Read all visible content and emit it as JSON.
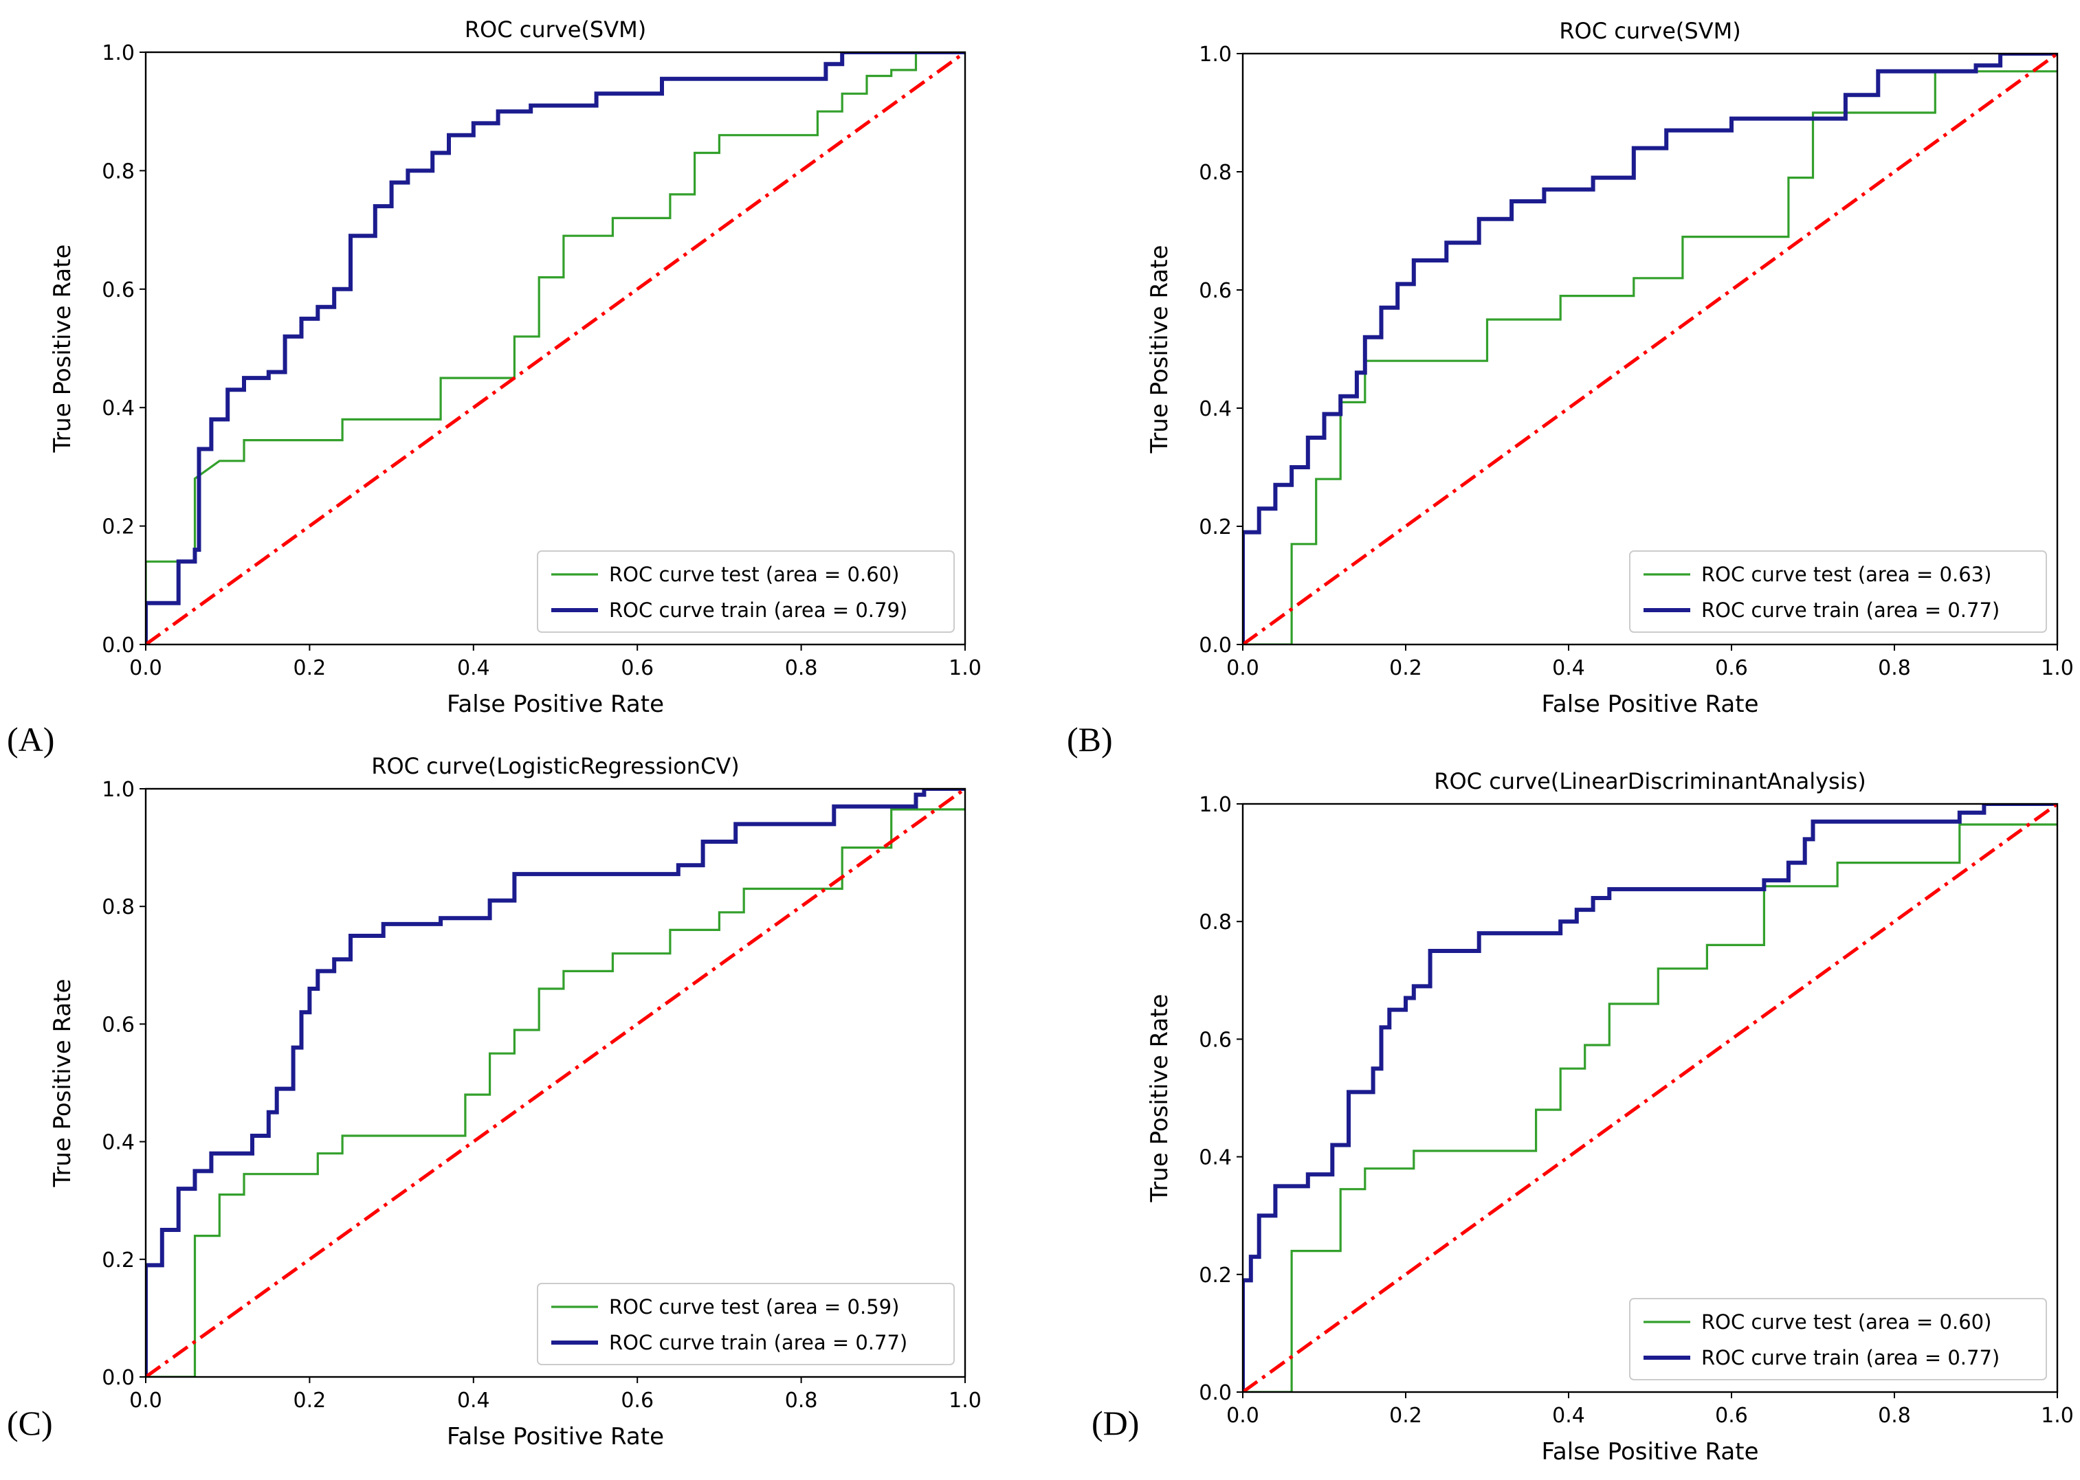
{
  "chart_data": [
    {
      "type": "line",
      "panel_label": "(A)",
      "title": "ROC curve(SVM)",
      "xlabel": "False Positive Rate",
      "ylabel": "True Positive Rate",
      "xlim": [
        0.0,
        1.0
      ],
      "ylim": [
        0.0,
        1.0
      ],
      "xticks": [
        "0.0",
        "0.2",
        "0.4",
        "0.6",
        "0.8",
        "1.0"
      ],
      "yticks": [
        "0.0",
        "0.2",
        "0.4",
        "0.6",
        "0.8",
        "1.0"
      ],
      "grid": false,
      "legend_position": "lower-right",
      "colors": {
        "test": "#33a02c",
        "train": "#1c1c8f",
        "diagonal": "#ff0000"
      },
      "series": [
        {
          "name": "ROC curve test (area = 0.60)",
          "role": "test",
          "x": [
            0,
            0,
            0.06,
            0.06,
            0.09,
            0.12,
            0.12,
            0.24,
            0.24,
            0.36,
            0.36,
            0.45,
            0.45,
            0.48,
            0.48,
            0.51,
            0.51,
            0.57,
            0.57,
            0.64,
            0.64,
            0.67,
            0.67,
            0.7,
            0.7,
            0.82,
            0.82,
            0.85,
            0.85,
            0.88,
            0.88,
            0.91,
            0.91,
            0.94,
            0.94,
            1.0
          ],
          "y": [
            0,
            0.14,
            0.14,
            0.28,
            0.31,
            0.31,
            0.345,
            0.345,
            0.38,
            0.38,
            0.45,
            0.45,
            0.52,
            0.52,
            0.62,
            0.62,
            0.69,
            0.69,
            0.72,
            0.72,
            0.76,
            0.76,
            0.83,
            0.83,
            0.86,
            0.86,
            0.9,
            0.9,
            0.93,
            0.93,
            0.96,
            0.96,
            0.97,
            0.97,
            1.0,
            1.0
          ]
        },
        {
          "name": "ROC curve train (area = 0.79)",
          "role": "train",
          "x": [
            0,
            0,
            0.04,
            0.04,
            0.06,
            0.06,
            0.065,
            0.065,
            0.08,
            0.08,
            0.1,
            0.1,
            0.12,
            0.12,
            0.15,
            0.15,
            0.17,
            0.17,
            0.19,
            0.19,
            0.21,
            0.21,
            0.23,
            0.23,
            0.25,
            0.25,
            0.28,
            0.28,
            0.3,
            0.3,
            0.32,
            0.32,
            0.35,
            0.35,
            0.37,
            0.37,
            0.4,
            0.4,
            0.43,
            0.43,
            0.47,
            0.47,
            0.55,
            0.55,
            0.63,
            0.63,
            0.83,
            0.83,
            0.85,
            0.85,
            1.0
          ],
          "y": [
            0,
            0.07,
            0.07,
            0.14,
            0.14,
            0.16,
            0.16,
            0.33,
            0.33,
            0.38,
            0.38,
            0.43,
            0.43,
            0.45,
            0.45,
            0.46,
            0.46,
            0.52,
            0.52,
            0.55,
            0.55,
            0.57,
            0.57,
            0.6,
            0.6,
            0.69,
            0.69,
            0.74,
            0.74,
            0.78,
            0.78,
            0.8,
            0.8,
            0.83,
            0.83,
            0.86,
            0.86,
            0.88,
            0.88,
            0.9,
            0.9,
            0.91,
            0.91,
            0.93,
            0.93,
            0.955,
            0.955,
            0.98,
            0.98,
            1.0,
            1.0
          ]
        },
        {
          "name": "diagonal",
          "role": "diagonal",
          "x": [
            0,
            1
          ],
          "y": [
            0,
            1
          ]
        }
      ]
    },
    {
      "type": "line",
      "panel_label": "(B)",
      "title": "ROC curve(SVM)",
      "xlabel": "False Positive Rate",
      "ylabel": "True Positive Rate",
      "xlim": [
        0.0,
        1.0
      ],
      "ylim": [
        0.0,
        1.0
      ],
      "xticks": [
        "0.0",
        "0.2",
        "0.4",
        "0.6",
        "0.8",
        "1.0"
      ],
      "yticks": [
        "0.0",
        "0.2",
        "0.4",
        "0.6",
        "0.8",
        "1.0"
      ],
      "grid": false,
      "legend_position": "lower-right",
      "colors": {
        "test": "#33a02c",
        "train": "#1c1c8f",
        "diagonal": "#ff0000"
      },
      "series": [
        {
          "name": "ROC curve test (area = 0.63)",
          "role": "test",
          "x": [
            0,
            0.06,
            0.06,
            0.09,
            0.09,
            0.12,
            0.12,
            0.15,
            0.15,
            0.3,
            0.3,
            0.39,
            0.39,
            0.48,
            0.48,
            0.54,
            0.54,
            0.67,
            0.67,
            0.7,
            0.7,
            0.85,
            0.85,
            1.0
          ],
          "y": [
            0,
            0,
            0.17,
            0.17,
            0.28,
            0.28,
            0.41,
            0.41,
            0.48,
            0.48,
            0.55,
            0.55,
            0.59,
            0.59,
            0.62,
            0.62,
            0.69,
            0.69,
            0.79,
            0.79,
            0.9,
            0.9,
            0.97,
            0.97
          ]
        },
        {
          "name": "ROC curve train (area = 0.77)",
          "role": "train",
          "x": [
            0,
            0,
            0.02,
            0.02,
            0.04,
            0.04,
            0.06,
            0.06,
            0.08,
            0.08,
            0.1,
            0.1,
            0.12,
            0.12,
            0.14,
            0.14,
            0.15,
            0.15,
            0.17,
            0.17,
            0.19,
            0.19,
            0.21,
            0.21,
            0.25,
            0.25,
            0.29,
            0.29,
            0.33,
            0.33,
            0.37,
            0.37,
            0.43,
            0.43,
            0.48,
            0.48,
            0.52,
            0.52,
            0.6,
            0.6,
            0.74,
            0.74,
            0.78,
            0.78,
            0.9,
            0.9,
            0.93,
            0.93,
            1.0
          ],
          "y": [
            0,
            0.19,
            0.19,
            0.23,
            0.23,
            0.27,
            0.27,
            0.3,
            0.3,
            0.35,
            0.35,
            0.39,
            0.39,
            0.42,
            0.42,
            0.46,
            0.46,
            0.52,
            0.52,
            0.57,
            0.57,
            0.61,
            0.61,
            0.65,
            0.65,
            0.68,
            0.68,
            0.72,
            0.72,
            0.75,
            0.75,
            0.77,
            0.77,
            0.79,
            0.79,
            0.84,
            0.84,
            0.87,
            0.87,
            0.89,
            0.89,
            0.93,
            0.93,
            0.97,
            0.97,
            0.98,
            0.98,
            1.0,
            1.0
          ]
        },
        {
          "name": "diagonal",
          "role": "diagonal",
          "x": [
            0,
            1
          ],
          "y": [
            0,
            1
          ]
        }
      ]
    },
    {
      "type": "line",
      "panel_label": "(C)",
      "title": "ROC curve(LogisticRegressionCV)",
      "xlabel": "False Positive Rate",
      "ylabel": "True Positive Rate",
      "xlim": [
        0.0,
        1.0
      ],
      "ylim": [
        0.0,
        1.0
      ],
      "xticks": [
        "0.0",
        "0.2",
        "0.4",
        "0.6",
        "0.8",
        "1.0"
      ],
      "yticks": [
        "0.0",
        "0.2",
        "0.4",
        "0.6",
        "0.8",
        "1.0"
      ],
      "grid": false,
      "legend_position": "lower-right",
      "colors": {
        "test": "#33a02c",
        "train": "#1c1c8f",
        "diagonal": "#ff0000"
      },
      "series": [
        {
          "name": "ROC curve test (area = 0.59)",
          "role": "test",
          "x": [
            0,
            0.06,
            0.06,
            0.09,
            0.09,
            0.12,
            0.12,
            0.21,
            0.21,
            0.24,
            0.24,
            0.39,
            0.39,
            0.42,
            0.42,
            0.45,
            0.45,
            0.48,
            0.48,
            0.51,
            0.51,
            0.57,
            0.57,
            0.64,
            0.64,
            0.7,
            0.7,
            0.73,
            0.73,
            0.85,
            0.85,
            0.91,
            0.91,
            0.97,
            0.97,
            1.0
          ],
          "y": [
            0,
            0,
            0.24,
            0.24,
            0.31,
            0.31,
            0.345,
            0.345,
            0.38,
            0.38,
            0.41,
            0.41,
            0.48,
            0.48,
            0.55,
            0.55,
            0.59,
            0.59,
            0.66,
            0.66,
            0.69,
            0.69,
            0.72,
            0.72,
            0.76,
            0.76,
            0.79,
            0.79,
            0.83,
            0.83,
            0.9,
            0.9,
            0.965,
            0.965,
            0.965,
            0.965
          ]
        },
        {
          "name": "ROC curve train (area = 0.77)",
          "role": "train",
          "x": [
            0,
            0,
            0.02,
            0.02,
            0.04,
            0.04,
            0.06,
            0.06,
            0.08,
            0.08,
            0.13,
            0.13,
            0.15,
            0.15,
            0.16,
            0.16,
            0.18,
            0.18,
            0.19,
            0.19,
            0.2,
            0.2,
            0.21,
            0.21,
            0.23,
            0.23,
            0.25,
            0.25,
            0.29,
            0.29,
            0.36,
            0.36,
            0.42,
            0.42,
            0.45,
            0.45,
            0.65,
            0.65,
            0.68,
            0.68,
            0.72,
            0.72,
            0.84,
            0.84,
            0.94,
            0.94,
            0.95,
            0.95,
            1.0
          ],
          "y": [
            0,
            0.19,
            0.19,
            0.25,
            0.25,
            0.32,
            0.32,
            0.35,
            0.35,
            0.38,
            0.38,
            0.41,
            0.41,
            0.45,
            0.45,
            0.49,
            0.49,
            0.56,
            0.56,
            0.62,
            0.62,
            0.66,
            0.66,
            0.69,
            0.69,
            0.71,
            0.71,
            0.75,
            0.75,
            0.77,
            0.77,
            0.78,
            0.78,
            0.81,
            0.81,
            0.855,
            0.855,
            0.87,
            0.87,
            0.91,
            0.91,
            0.94,
            0.94,
            0.97,
            0.97,
            0.99,
            0.99,
            1.0,
            1.0
          ]
        },
        {
          "name": "diagonal",
          "role": "diagonal",
          "x": [
            0,
            1
          ],
          "y": [
            0,
            1
          ]
        }
      ]
    },
    {
      "type": "line",
      "panel_label": "(D)",
      "title": "ROC curve(LinearDiscriminantAnalysis)",
      "xlabel": "False Positive Rate",
      "ylabel": "True Positive Rate",
      "xlim": [
        0.0,
        1.0
      ],
      "ylim": [
        0.0,
        1.0
      ],
      "xticks": [
        "0.0",
        "0.2",
        "0.4",
        "0.6",
        "0.8",
        "1.0"
      ],
      "yticks": [
        "0.0",
        "0.2",
        "0.4",
        "0.6",
        "0.8",
        "1.0"
      ],
      "grid": false,
      "legend_position": "lower-right",
      "colors": {
        "test": "#33a02c",
        "train": "#1c1c8f",
        "diagonal": "#ff0000"
      },
      "series": [
        {
          "name": "ROC curve test (area = 0.60)",
          "role": "test",
          "x": [
            0,
            0.06,
            0.06,
            0.12,
            0.12,
            0.15,
            0.15,
            0.21,
            0.21,
            0.36,
            0.36,
            0.39,
            0.39,
            0.42,
            0.42,
            0.45,
            0.45,
            0.51,
            0.51,
            0.57,
            0.57,
            0.64,
            0.64,
            0.73,
            0.73,
            0.88,
            0.88,
            0.91,
            0.91,
            0.97,
            0.97,
            1.0
          ],
          "y": [
            0,
            0,
            0.24,
            0.24,
            0.345,
            0.345,
            0.38,
            0.38,
            0.41,
            0.41,
            0.48,
            0.48,
            0.55,
            0.55,
            0.59,
            0.59,
            0.66,
            0.66,
            0.72,
            0.72,
            0.76,
            0.76,
            0.86,
            0.86,
            0.9,
            0.9,
            0.965,
            0.965,
            0.965,
            0.965,
            0.965,
            0.965
          ]
        },
        {
          "name": "ROC curve train (area = 0.77)",
          "role": "train",
          "x": [
            0,
            0,
            0.01,
            0.01,
            0.02,
            0.02,
            0.04,
            0.04,
            0.08,
            0.08,
            0.11,
            0.11,
            0.13,
            0.13,
            0.16,
            0.16,
            0.17,
            0.17,
            0.18,
            0.18,
            0.2,
            0.2,
            0.21,
            0.21,
            0.23,
            0.23,
            0.29,
            0.29,
            0.39,
            0.39,
            0.41,
            0.41,
            0.43,
            0.43,
            0.45,
            0.45,
            0.64,
            0.64,
            0.67,
            0.67,
            0.69,
            0.69,
            0.7,
            0.7,
            0.88,
            0.88,
            0.91,
            0.91,
            0.93,
            0.93,
            1.0
          ],
          "y": [
            0,
            0.19,
            0.19,
            0.23,
            0.23,
            0.3,
            0.3,
            0.35,
            0.35,
            0.37,
            0.37,
            0.42,
            0.42,
            0.51,
            0.51,
            0.55,
            0.55,
            0.62,
            0.62,
            0.65,
            0.65,
            0.67,
            0.67,
            0.69,
            0.69,
            0.75,
            0.75,
            0.78,
            0.78,
            0.8,
            0.8,
            0.82,
            0.82,
            0.84,
            0.84,
            0.855,
            0.855,
            0.87,
            0.87,
            0.9,
            0.9,
            0.94,
            0.94,
            0.97,
            0.97,
            0.985,
            0.985,
            1.0,
            1.0,
            1.0,
            1.0
          ]
        },
        {
          "name": "diagonal",
          "role": "diagonal",
          "x": [
            0,
            1
          ],
          "y": [
            0,
            1
          ]
        }
      ]
    }
  ]
}
